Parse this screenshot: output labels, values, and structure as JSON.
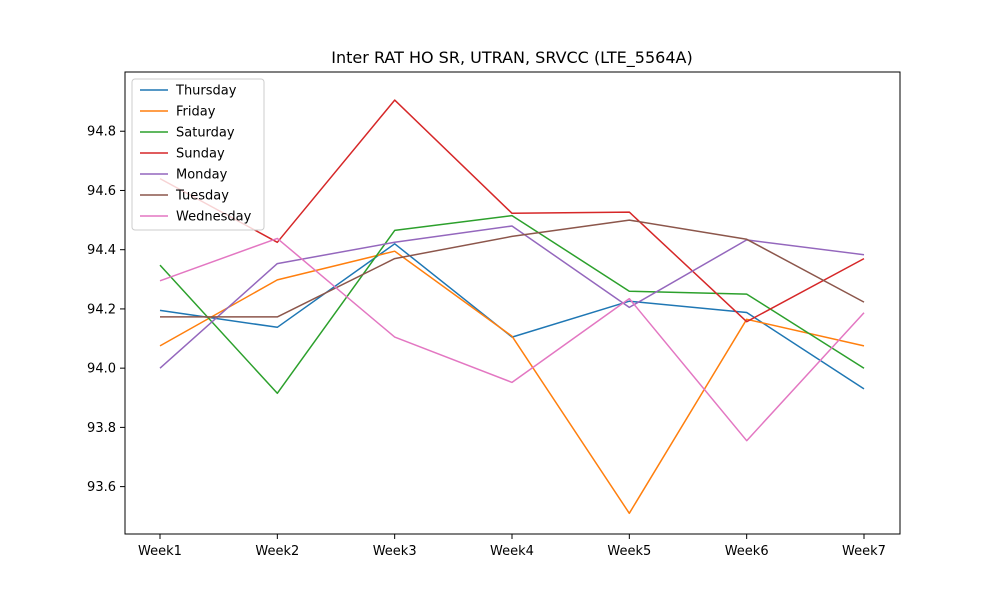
{
  "chart_data": {
    "type": "line",
    "title": "Inter RAT HO SR, UTRAN, SRVCC (LTE_5564A)",
    "xlabel": "",
    "ylabel": "",
    "categories": [
      "Week1",
      "Week2",
      "Week3",
      "Week4",
      "Week5",
      "Week6",
      "Week7"
    ],
    "ylim": [
      93.44,
      95.0
    ],
    "yticks": [
      93.6,
      93.8,
      94.0,
      94.2,
      94.4,
      94.6,
      94.8
    ],
    "ytick_labels": [
      "93.6",
      "93.8",
      "94.0",
      "94.2",
      "94.4",
      "94.6",
      "94.8"
    ],
    "grid": false,
    "legend_position": "top-left",
    "series": [
      {
        "name": "Thursday",
        "color": "#1f77b4",
        "values": [
          94.195,
          94.138,
          94.42,
          94.105,
          94.226,
          94.188,
          93.93
        ]
      },
      {
        "name": "Friday",
        "color": "#ff7f0e",
        "values": [
          94.075,
          94.298,
          94.395,
          94.108,
          93.51,
          94.165,
          94.075
        ]
      },
      {
        "name": "Saturday",
        "color": "#2ca02c",
        "values": [
          94.348,
          93.915,
          94.465,
          94.515,
          94.26,
          94.25,
          94.0
        ]
      },
      {
        "name": "Sunday",
        "color": "#d62728",
        "values": [
          94.64,
          94.425,
          94.905,
          94.523,
          94.527,
          94.157,
          94.37
        ]
      },
      {
        "name": "Monday",
        "color": "#9467bd",
        "values": [
          94.0,
          94.353,
          94.425,
          94.48,
          94.205,
          94.433,
          94.383
        ]
      },
      {
        "name": "Tuesday",
        "color": "#8c564b",
        "values": [
          94.173,
          94.173,
          94.37,
          94.445,
          94.5,
          94.435,
          94.223
        ]
      },
      {
        "name": "Wednesday",
        "color": "#e377c2",
        "values": [
          94.295,
          94.438,
          94.105,
          93.952,
          94.235,
          93.755,
          94.187
        ]
      }
    ]
  }
}
